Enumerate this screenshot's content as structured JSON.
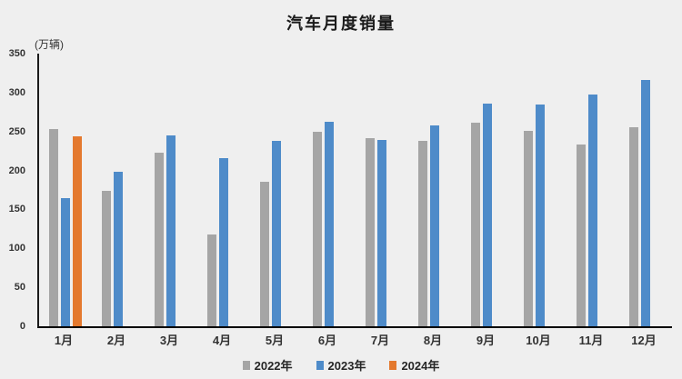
{
  "chart_data": {
    "type": "bar",
    "title": "汽车月度销量",
    "unit_label": "(万辆)",
    "xlabel": "",
    "ylabel": "万辆",
    "ylim": [
      0,
      350
    ],
    "ytick_step": 50,
    "yticks": [
      0,
      50,
      100,
      150,
      200,
      250,
      300,
      350
    ],
    "grid": false,
    "legend_position": "bottom",
    "categories": [
      "1月",
      "2月",
      "3月",
      "4月",
      "5月",
      "6月",
      "7月",
      "8月",
      "9月",
      "10月",
      "11月",
      "12月"
    ],
    "series": [
      {
        "name": "2022年",
        "color": "#a5a5a5",
        "values": [
          253,
          174,
          223,
          118,
          186,
          250,
          242,
          238,
          261,
          251,
          233,
          256
        ]
      },
      {
        "name": "2023年",
        "color": "#4e8bc9",
        "values": [
          165,
          198,
          245,
          216,
          238,
          262,
          239,
          258,
          286,
          285,
          297,
          316
        ]
      },
      {
        "name": "2024年",
        "color": "#e4792e",
        "values": [
          244,
          null,
          null,
          null,
          null,
          null,
          null,
          null,
          null,
          null,
          null,
          null
        ]
      }
    ],
    "colors": {
      "background": "#efefef",
      "axis": "#000000",
      "tick_text": "#333333",
      "title_text": "#1a1a1a"
    }
  }
}
